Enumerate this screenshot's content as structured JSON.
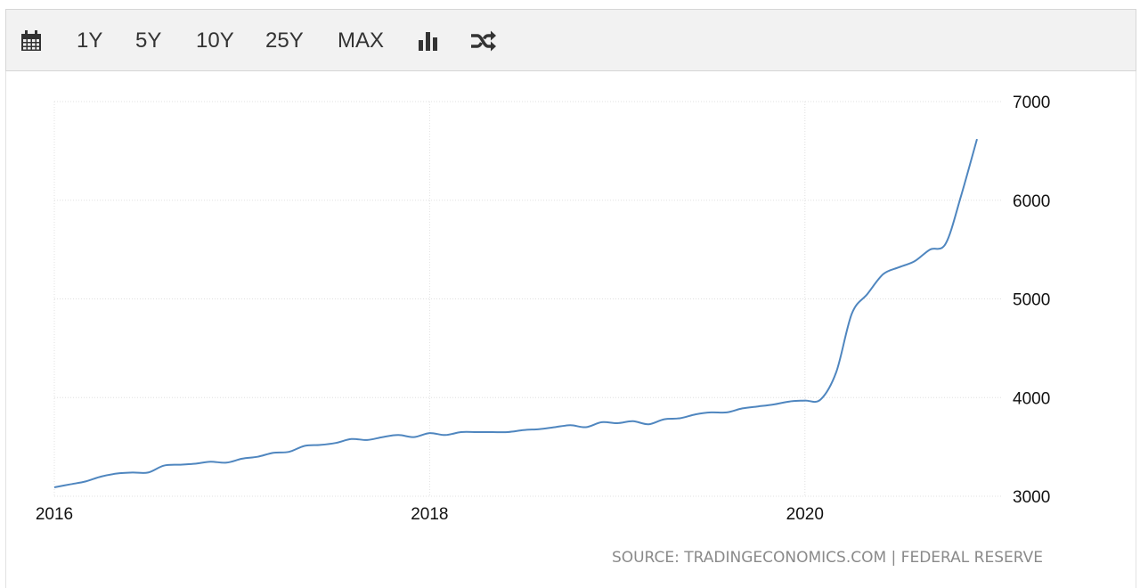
{
  "toolbar": {
    "buttons": [
      {
        "icon": "calendar-icon"
      },
      {
        "label": "1Y"
      },
      {
        "label": "5Y"
      },
      {
        "label": "10Y"
      },
      {
        "label": "25Y"
      },
      {
        "label": "MAX"
      },
      {
        "icon": "bar-chart-icon"
      },
      {
        "icon": "shuffle-icon"
      }
    ]
  },
  "source": {
    "text": "SOURCE: TRADINGECONOMICS.COM | FEDERAL RESERVE"
  },
  "colors": {
    "line": "#4f86bf",
    "grid": "#e0e0e0",
    "toolbar_bg": "#f2f2f2"
  },
  "chart_data": {
    "type": "line",
    "title": "",
    "xlabel": "",
    "ylabel": "",
    "x_ticks": [
      {
        "value": 2016,
        "label": "2016"
      },
      {
        "value": 2018,
        "label": "2018"
      },
      {
        "value": 2020,
        "label": "2020"
      }
    ],
    "y_ticks": [
      3000,
      4000,
      5000,
      6000,
      7000
    ],
    "xlim": [
      2016,
      2021.05
    ],
    "ylim": [
      3000,
      7000
    ],
    "grid": true,
    "y_axis_position": "right",
    "legend": "none",
    "series": [
      {
        "x": [
          2016.0,
          2016.083,
          2016.167,
          2016.25,
          2016.333,
          2016.417,
          2016.5,
          2016.583,
          2016.667,
          2016.75,
          2016.833,
          2016.917,
          2017.0,
          2017.083,
          2017.167,
          2017.25,
          2017.333,
          2017.417,
          2017.5,
          2017.583,
          2017.667,
          2017.75,
          2017.833,
          2017.917,
          2018.0,
          2018.083,
          2018.167,
          2018.25,
          2018.333,
          2018.417,
          2018.5,
          2018.583,
          2018.667,
          2018.75,
          2018.833,
          2018.917,
          2019.0,
          2019.083,
          2019.167,
          2019.25,
          2019.333,
          2019.417,
          2019.5,
          2019.583,
          2019.667,
          2019.75,
          2019.833,
          2019.917,
          2020.0,
          2020.083,
          2020.167,
          2020.25,
          2020.333,
          2020.417,
          2020.5,
          2020.583,
          2020.667,
          2020.75,
          2020.833,
          2020.917
        ],
        "values": [
          3090,
          3120,
          3150,
          3200,
          3230,
          3240,
          3240,
          3310,
          3320,
          3330,
          3350,
          3340,
          3380,
          3400,
          3440,
          3450,
          3510,
          3520,
          3540,
          3580,
          3570,
          3600,
          3620,
          3600,
          3640,
          3620,
          3650,
          3650,
          3650,
          3650,
          3670,
          3680,
          3700,
          3720,
          3700,
          3750,
          3740,
          3760,
          3730,
          3780,
          3790,
          3830,
          3850,
          3850,
          3890,
          3910,
          3930,
          3960,
          3970,
          3980,
          4260,
          4850,
          5050,
          5250,
          5320,
          5380,
          5500,
          5560,
          6050,
          6620
        ]
      }
    ]
  }
}
